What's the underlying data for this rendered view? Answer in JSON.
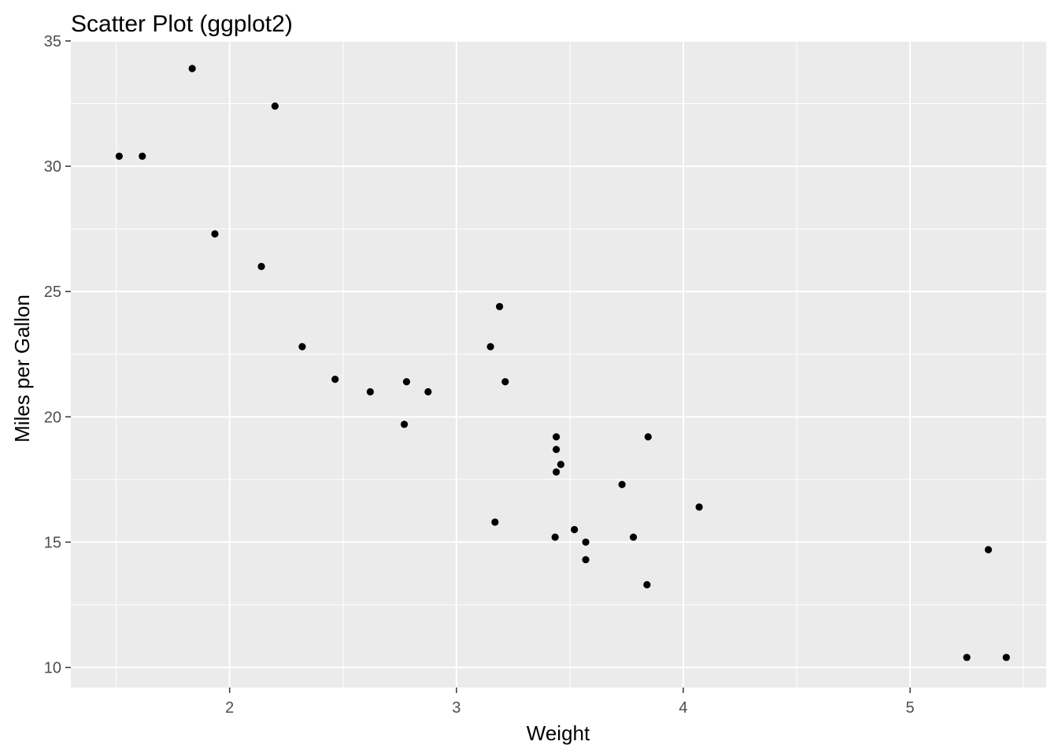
{
  "chart_data": {
    "type": "scatter",
    "title": "Scatter Plot (ggplot2)",
    "xlabel": "Weight",
    "ylabel": "Miles per Gallon",
    "xlim": [
      1.3,
      5.6
    ],
    "ylim": [
      9.2,
      35.0
    ],
    "x_ticks": [
      2,
      3,
      4,
      5
    ],
    "y_ticks": [
      10,
      15,
      20,
      25,
      30,
      35
    ],
    "x_tick_labels": [
      "2",
      "3",
      "4",
      "5"
    ],
    "y_tick_labels": [
      "10",
      "15",
      "20",
      "25",
      "30",
      "35"
    ],
    "grid": true,
    "legend": "none",
    "colors": {
      "panel_background": "#EBEBEB",
      "grid": "#FFFFFF",
      "point": "#000000",
      "tick_label": "#4D4D4D"
    },
    "series": [
      {
        "points": [
          [
            1.513,
            30.4
          ],
          [
            1.615,
            30.4
          ],
          [
            1.835,
            33.9
          ],
          [
            1.935,
            27.3
          ],
          [
            2.14,
            26.0
          ],
          [
            2.2,
            32.4
          ],
          [
            2.32,
            22.8
          ],
          [
            2.465,
            21.5
          ],
          [
            2.62,
            21.0
          ],
          [
            2.77,
            19.7
          ],
          [
            2.78,
            21.4
          ],
          [
            2.875,
            21.0
          ],
          [
            3.15,
            22.8
          ],
          [
            3.17,
            15.8
          ],
          [
            3.19,
            24.4
          ],
          [
            3.215,
            21.4
          ],
          [
            3.435,
            15.2
          ],
          [
            3.44,
            17.8
          ],
          [
            3.44,
            18.7
          ],
          [
            3.44,
            19.2
          ],
          [
            3.46,
            18.1
          ],
          [
            3.52,
            15.5
          ],
          [
            3.57,
            15.0
          ],
          [
            3.57,
            14.3
          ],
          [
            3.73,
            17.3
          ],
          [
            3.78,
            15.2
          ],
          [
            3.84,
            13.3
          ],
          [
            3.845,
            19.2
          ],
          [
            4.07,
            16.4
          ],
          [
            5.25,
            10.4
          ],
          [
            5.345,
            14.7
          ],
          [
            5.424,
            10.4
          ]
        ]
      }
    ]
  }
}
